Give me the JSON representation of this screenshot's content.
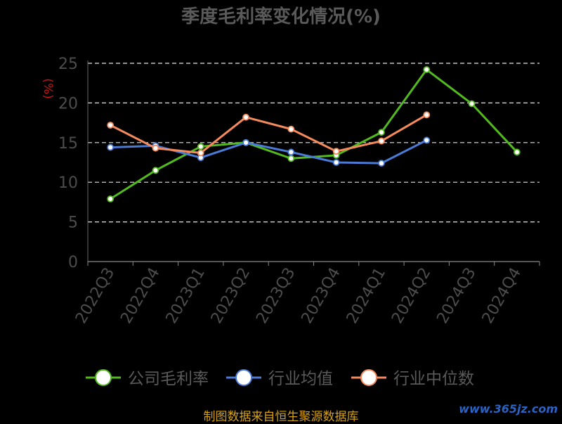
{
  "chart_data": {
    "type": "line",
    "title": "季度毛利率变化情况(%)",
    "ylabel": "(%)",
    "ylim": [
      0,
      25
    ],
    "yticks": [
      0,
      5,
      10,
      15,
      20,
      25
    ],
    "grid": true,
    "legend_position": "bottom",
    "categories": [
      "2022Q3",
      "2022Q4",
      "2023Q1",
      "2023Q2",
      "2023Q3",
      "2023Q4",
      "2024Q1",
      "2024Q2",
      "2024Q3",
      "2024Q4"
    ],
    "series": [
      {
        "name": "公司毛利率",
        "color": "#52b91f",
        "values": [
          7.9,
          11.5,
          14.5,
          15.0,
          13.0,
          13.4,
          16.3,
          24.2,
          19.9,
          13.8
        ]
      },
      {
        "name": "行业均值",
        "color": "#4a7bd6",
        "values": [
          14.4,
          14.6,
          13.1,
          15.0,
          13.8,
          12.5,
          12.4,
          15.3,
          null,
          null
        ]
      },
      {
        "name": "行业中位数",
        "color": "#f58a5c",
        "values": [
          17.2,
          14.3,
          13.7,
          18.2,
          16.7,
          13.9,
          15.2,
          18.5,
          null,
          null
        ]
      }
    ]
  },
  "footer": {
    "source": "制图数据来自恒生聚源数据库",
    "watermark": "www.365jz.com"
  }
}
